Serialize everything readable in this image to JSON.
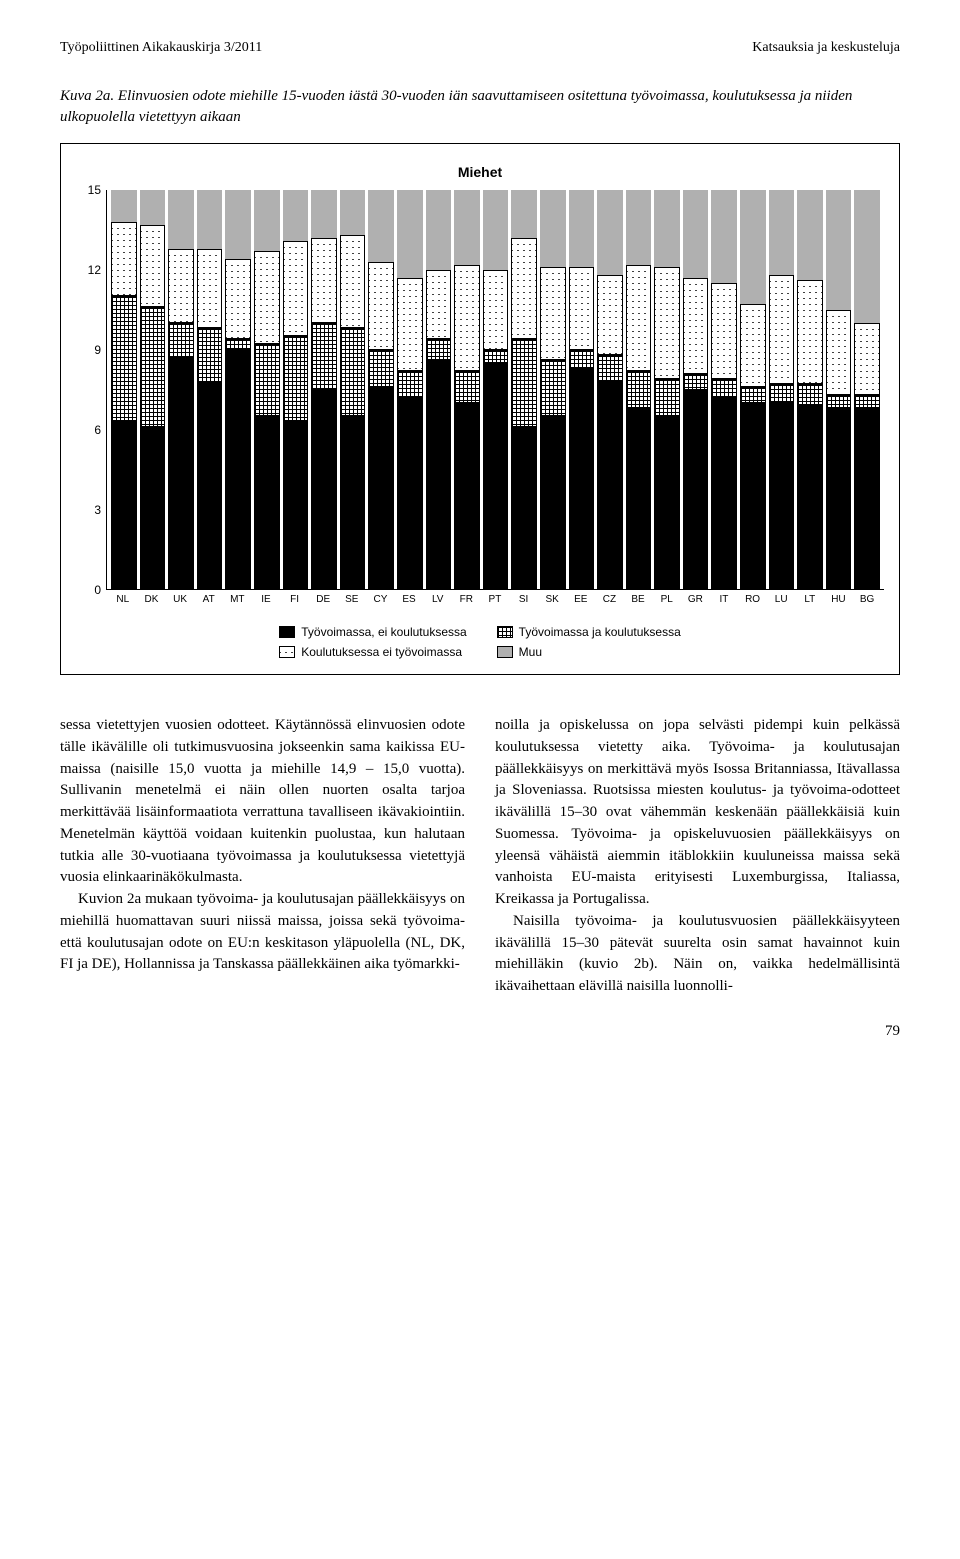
{
  "header": {
    "left": "Työpoliittinen Aikakauskirja 3/2011",
    "right": "Katsauksia ja keskusteluja"
  },
  "figure": {
    "caption": "Kuva 2a. Elinvuosien odote miehille 15-vuoden iästä 30-vuoden iän saavuttamiseen ositettuna työvoimassa, koulutuksessa ja niiden ulkopuolella vietettyyn aikaan",
    "title": "Miehet",
    "type": "stacked-bar",
    "ymax": 15,
    "ytick_step": 3,
    "yticks": [
      0,
      3,
      6,
      9,
      12,
      15
    ],
    "categories": [
      "NL",
      "DK",
      "UK",
      "AT",
      "MT",
      "IE",
      "FI",
      "DE",
      "SE",
      "CY",
      "ES",
      "LV",
      "FR",
      "PT",
      "SI",
      "SK",
      "EE",
      "CZ",
      "BE",
      "PL",
      "GR",
      "IT",
      "RO",
      "LU",
      "LT",
      "HU",
      "BG"
    ],
    "series_order": [
      "work",
      "work_edu",
      "edu",
      "other"
    ],
    "series_colors": {
      "work": "#000000",
      "work_edu": "grid-pattern",
      "edu": "cross-pattern",
      "other": "#b0b0b0"
    },
    "data": {
      "work": [
        6.3,
        6.1,
        8.7,
        7.8,
        9.0,
        6.5,
        6.3,
        7.5,
        6.5,
        7.6,
        7.2,
        8.6,
        7.0,
        8.5,
        6.1,
        6.5,
        8.3,
        7.8,
        6.8,
        6.5,
        7.5,
        7.2,
        7.0,
        7.0,
        6.9,
        6.8,
        6.8
      ],
      "work_edu": [
        4.7,
        4.5,
        1.3,
        2.0,
        0.4,
        2.7,
        3.2,
        2.5,
        3.3,
        1.4,
        1.0,
        0.8,
        1.2,
        0.5,
        3.3,
        2.1,
        0.7,
        1.0,
        1.4,
        1.4,
        0.6,
        0.7,
        0.6,
        0.7,
        0.8,
        0.5,
        0.5
      ],
      "edu": [
        2.8,
        3.1,
        2.8,
        3.0,
        3.0,
        3.5,
        3.6,
        3.2,
        3.5,
        3.3,
        3.5,
        2.6,
        4.0,
        3.0,
        3.8,
        3.5,
        3.1,
        3.0,
        4.0,
        4.2,
        3.6,
        3.6,
        3.1,
        4.1,
        3.9,
        3.2,
        2.7
      ],
      "other": [
        1.2,
        1.3,
        2.2,
        2.2,
        2.6,
        2.3,
        1.9,
        1.8,
        1.7,
        2.7,
        3.3,
        3.0,
        2.8,
        3.0,
        1.8,
        2.9,
        2.9,
        3.2,
        2.8,
        2.9,
        3.3,
        3.5,
        4.3,
        3.2,
        3.4,
        4.5,
        5.0
      ]
    },
    "legend": {
      "col1": [
        {
          "key": "work",
          "label": "Työvoimassa, ei koulutuksessa"
        },
        {
          "key": "edu",
          "label": "Koulutuksessa ei työvoimassa"
        }
      ],
      "col2": [
        {
          "key": "work_edu",
          "label": "Työvoimassa ja koulutuksessa"
        },
        {
          "key": "other",
          "label": "Muu"
        }
      ]
    }
  },
  "body": {
    "left": [
      "sessa vietettyjen vuosien odotteet. Käytännössä elinvuosien odote tälle ikävälille oli tutkimusvuosina jokseenkin sama kaikissa EU-maissa (naisille 15,0 vuotta ja miehille 14,9 – 15,0 vuotta). Sullivanin menetelmä ei näin ollen nuorten osalta tarjoa merkittävää lisäinformaatiota verrattuna tavalliseen ikävakiointiin. Menetelmän käyttöä voidaan kuitenkin puolustaa, kun halutaan tutkia alle 30-vuotiaana työvoimassa ja koulutuksessa vietettyjä vuosia elinkaarinäkökulmasta.",
      "Kuvion 2a mukaan työvoima- ja koulutusajan päällekkäisyys on miehillä huomattavan suuri niissä maissa, joissa sekä työvoima- että koulutusajan odote on EU:n keskitason yläpuolella (NL, DK, FI ja DE), Hollannissa ja Tanskassa päällekkäinen aika työmarkki-"
    ],
    "right": [
      "noilla ja opiskelussa on jopa selvästi pidempi kuin pelkässä koulutuksessa vietetty aika. Työvoima- ja koulutusajan päällekkäisyys on merkittävä myös Isossa Britanniassa, Itävallassa ja Sloveniassa. Ruotsissa miesten koulutus- ja työvoima-odotteet ikävälillä 15–30 ovat vähemmän keskenään päällekkäisiä kuin Suomessa. Työvoima- ja opiskeluvuosien päällekkäisyys on yleensä vähäistä aiemmin itäblokkiin kuuluneissa maissa sekä vanhoista EU-maista erityisesti Luxemburgissa, Italiassa, Kreikassa ja Portugalissa.",
      "Naisilla työvoima- ja koulutusvuosien päällekkäisyyteen ikävälillä 15–30 pätevät suurelta osin samat havainnot kuin miehilläkin (kuvio 2b). Näin on, vaikka hedelmällisintä ikävaihettaan elävillä naisilla luonnolli-"
    ]
  },
  "page_number": "79"
}
